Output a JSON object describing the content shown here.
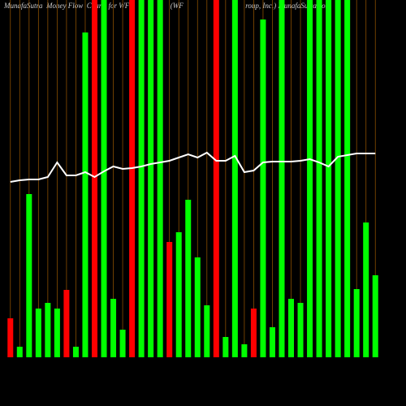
{
  "chart_data": {
    "type": "bar",
    "title": "MunafaSutra  Money Flow  Charts for WFF                    (WF                                  roup, Inc.) MunafaSutra.com",
    "categories": [
      null,
      null,
      null,
      null,
      null,
      null,
      null,
      null,
      null,
      null,
      null,
      null,
      null,
      null,
      null,
      null,
      null,
      null,
      null,
      null,
      null,
      null,
      null,
      null,
      null,
      null,
      null,
      null,
      null,
      null,
      null,
      null,
      null,
      null,
      null,
      null,
      null,
      null,
      null,
      null
    ],
    "series": [
      {
        "type": "bar",
        "colors": [
          "#ff0000",
          "#00ff00",
          "#00ff00",
          "#00ff00",
          "#00ff00",
          "#00ff00",
          "#ff0000",
          "#00ff00",
          "#00ff00",
          "#ff0000",
          "#00ff00",
          "#00ff00",
          "#00ff00",
          "#ff0000",
          "#00ff00",
          "#00ff00",
          "#00ff00",
          "#ff0000",
          "#00ff00",
          "#00ff00",
          "#00ff00",
          "#00ff00",
          "#ff0000",
          "#00ff00",
          "#00ff00",
          "#00ff00",
          "#ff0000",
          "#00ff00",
          "#00ff00",
          "#00ff00",
          "#00ff00",
          "#00ff00",
          "#00ff00",
          "#00ff00",
          "#00ff00",
          "#00ff00",
          "#00ff00",
          "#00ff00",
          "#00ff00",
          "#00ff00"
        ],
        "values": [
          48,
          13,
          201,
          60,
          67,
          60,
          83,
          13,
          400,
          440,
          440,
          72,
          34,
          440,
          440,
          440,
          440,
          142,
          154,
          194,
          123,
          64,
          440,
          25,
          440,
          16,
          60,
          416,
          37,
          440,
          72,
          67,
          440,
          440,
          440,
          440,
          440,
          84,
          166,
          101
        ]
      },
      {
        "type": "line",
        "color": "#ffffff",
        "values": [
          216,
          218,
          219,
          219,
          222,
          240,
          224,
          224,
          228,
          222,
          229,
          235,
          232,
          233,
          235,
          238,
          240,
          242,
          246,
          250,
          246,
          252,
          242,
          242,
          248,
          228,
          230,
          240,
          241,
          241,
          241,
          242,
          244,
          240,
          235,
          247,
          249,
          251,
          251,
          251
        ]
      }
    ],
    "ylim": [
      0,
      440
    ],
    "grid_color": "#8a4f00",
    "grid": true
  }
}
